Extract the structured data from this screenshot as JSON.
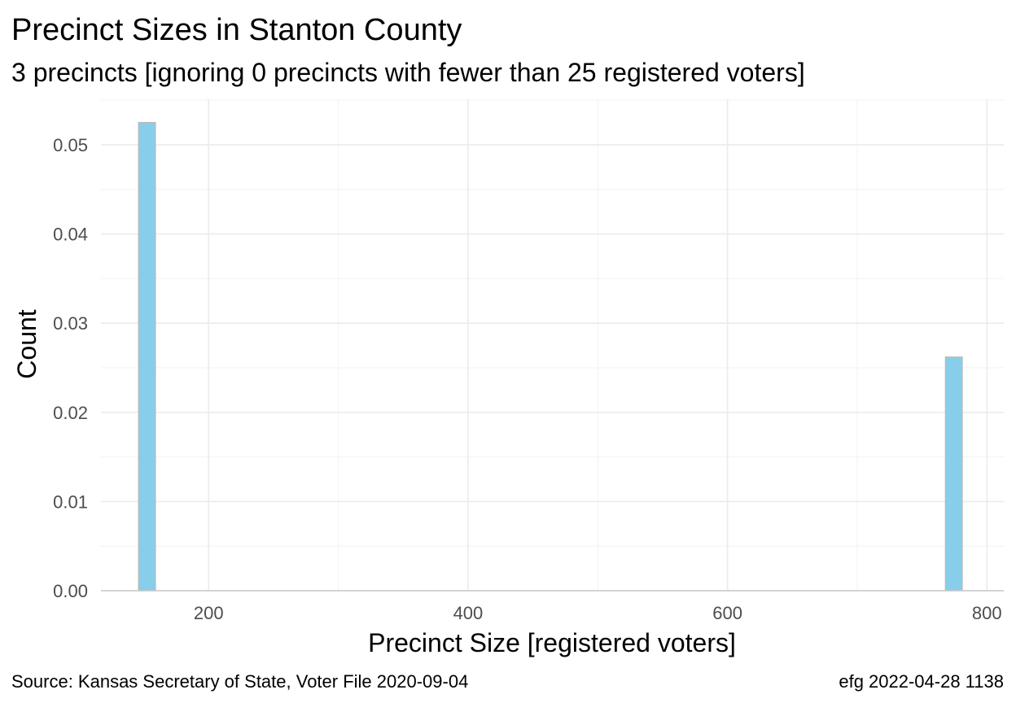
{
  "chart_data": {
    "type": "bar",
    "title": "Precinct Sizes in Stanton County",
    "subtitle": "3 precincts [ignoring 0 precincts with fewer than 25 registered voters]",
    "xlabel": "Precinct Size [registered voters]",
    "ylabel": "Count",
    "xlim": [
      117,
      813
    ],
    "ylim": [
      0,
      0.0551
    ],
    "x_ticks": [
      200,
      400,
      600,
      800
    ],
    "y_ticks": [
      0.0,
      0.01,
      0.02,
      0.03,
      0.04,
      0.05
    ],
    "y_tick_labels": [
      "0.00",
      "0.01",
      "0.02",
      "0.03",
      "0.04",
      "0.05"
    ],
    "bars": [
      {
        "x_start": 146,
        "x_end": 159,
        "value": 0.0525
      },
      {
        "x_start": 768,
        "x_end": 781,
        "value": 0.0262
      }
    ],
    "bar_color": "#87ceeb",
    "grid": true,
    "caption_left": "Source:  Kansas Secretary of State, Voter File  2020-09-04",
    "caption_right": "efg 2022-04-28 1138"
  }
}
